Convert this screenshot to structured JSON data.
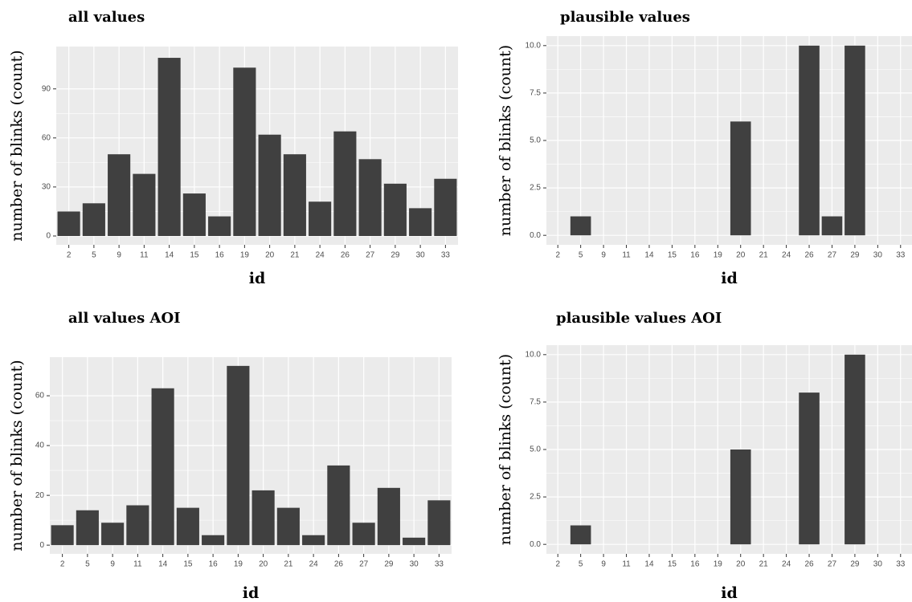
{
  "chart_data": [
    {
      "type": "bar",
      "title": "all values",
      "xlabel": "id",
      "ylabel": "number of blinks (count)",
      "categories": [
        "2",
        "5",
        "9",
        "11",
        "14",
        "15",
        "16",
        "19",
        "20",
        "21",
        "24",
        "26",
        "27",
        "29",
        "30",
        "33"
      ],
      "values": [
        15,
        20,
        50,
        38,
        109,
        26,
        12,
        103,
        62,
        50,
        21,
        64,
        47,
        32,
        17,
        35
      ],
      "color": "#404040",
      "ylim": [
        -5.4,
        115.9
      ],
      "yticks": [
        0,
        30,
        60,
        90
      ],
      "grid": true
    },
    {
      "type": "bar",
      "title": "plausible values",
      "xlabel": "id",
      "ylabel": "number of blinks (count)",
      "categories": [
        "2",
        "5",
        "9",
        "11",
        "14",
        "15",
        "16",
        "19",
        "20",
        "21",
        "24",
        "26",
        "27",
        "29",
        "30",
        "33"
      ],
      "values": [
        0,
        1,
        0,
        0,
        0,
        0,
        0,
        0,
        6,
        0,
        0,
        10,
        1,
        10,
        0,
        0
      ],
      "color": "#404040",
      "ylim": [
        -0.5,
        10.5
      ],
      "yticks": [
        {
          "value": 0,
          "label": "0.0"
        },
        2.5,
        {
          "value": 5,
          "label": "5.0"
        },
        7.5,
        {
          "value": 10,
          "label": "10.0"
        }
      ],
      "grid": true
    },
    {
      "type": "bar",
      "title": "all values AOI",
      "xlabel": "id",
      "ylabel": "number of blinks (count)",
      "categories": [
        "2",
        "5",
        "9",
        "11",
        "14",
        "15",
        "16",
        "19",
        "20",
        "21",
        "24",
        "26",
        "27",
        "29",
        "30",
        "33"
      ],
      "values": [
        8,
        14,
        9,
        16,
        63,
        15,
        4,
        72,
        22,
        15,
        4,
        32,
        9,
        23,
        3,
        18
      ],
      "color": "#404040",
      "ylim": [
        -3.5,
        75.5
      ],
      "yticks": [
        0,
        20,
        40,
        60
      ],
      "grid": true
    },
    {
      "type": "bar",
      "title": "plausible values AOI",
      "xlabel": "id",
      "ylabel": "number of blinks (count)",
      "categories": [
        "2",
        "5",
        "9",
        "11",
        "14",
        "15",
        "16",
        "19",
        "20",
        "21",
        "24",
        "26",
        "27",
        "29",
        "30",
        "33"
      ],
      "values": [
        0,
        1,
        0,
        0,
        0,
        0,
        0,
        0,
        5,
        0,
        0,
        8,
        0,
        10,
        0,
        0
      ],
      "color": "#404040",
      "ylim": [
        -0.5,
        10.5
      ],
      "yticks": [
        {
          "value": 0,
          "label": "0.0"
        },
        2.5,
        {
          "value": 5,
          "label": "5.0"
        },
        7.5,
        {
          "value": 10,
          "label": "10.0"
        }
      ],
      "grid": true
    }
  ]
}
